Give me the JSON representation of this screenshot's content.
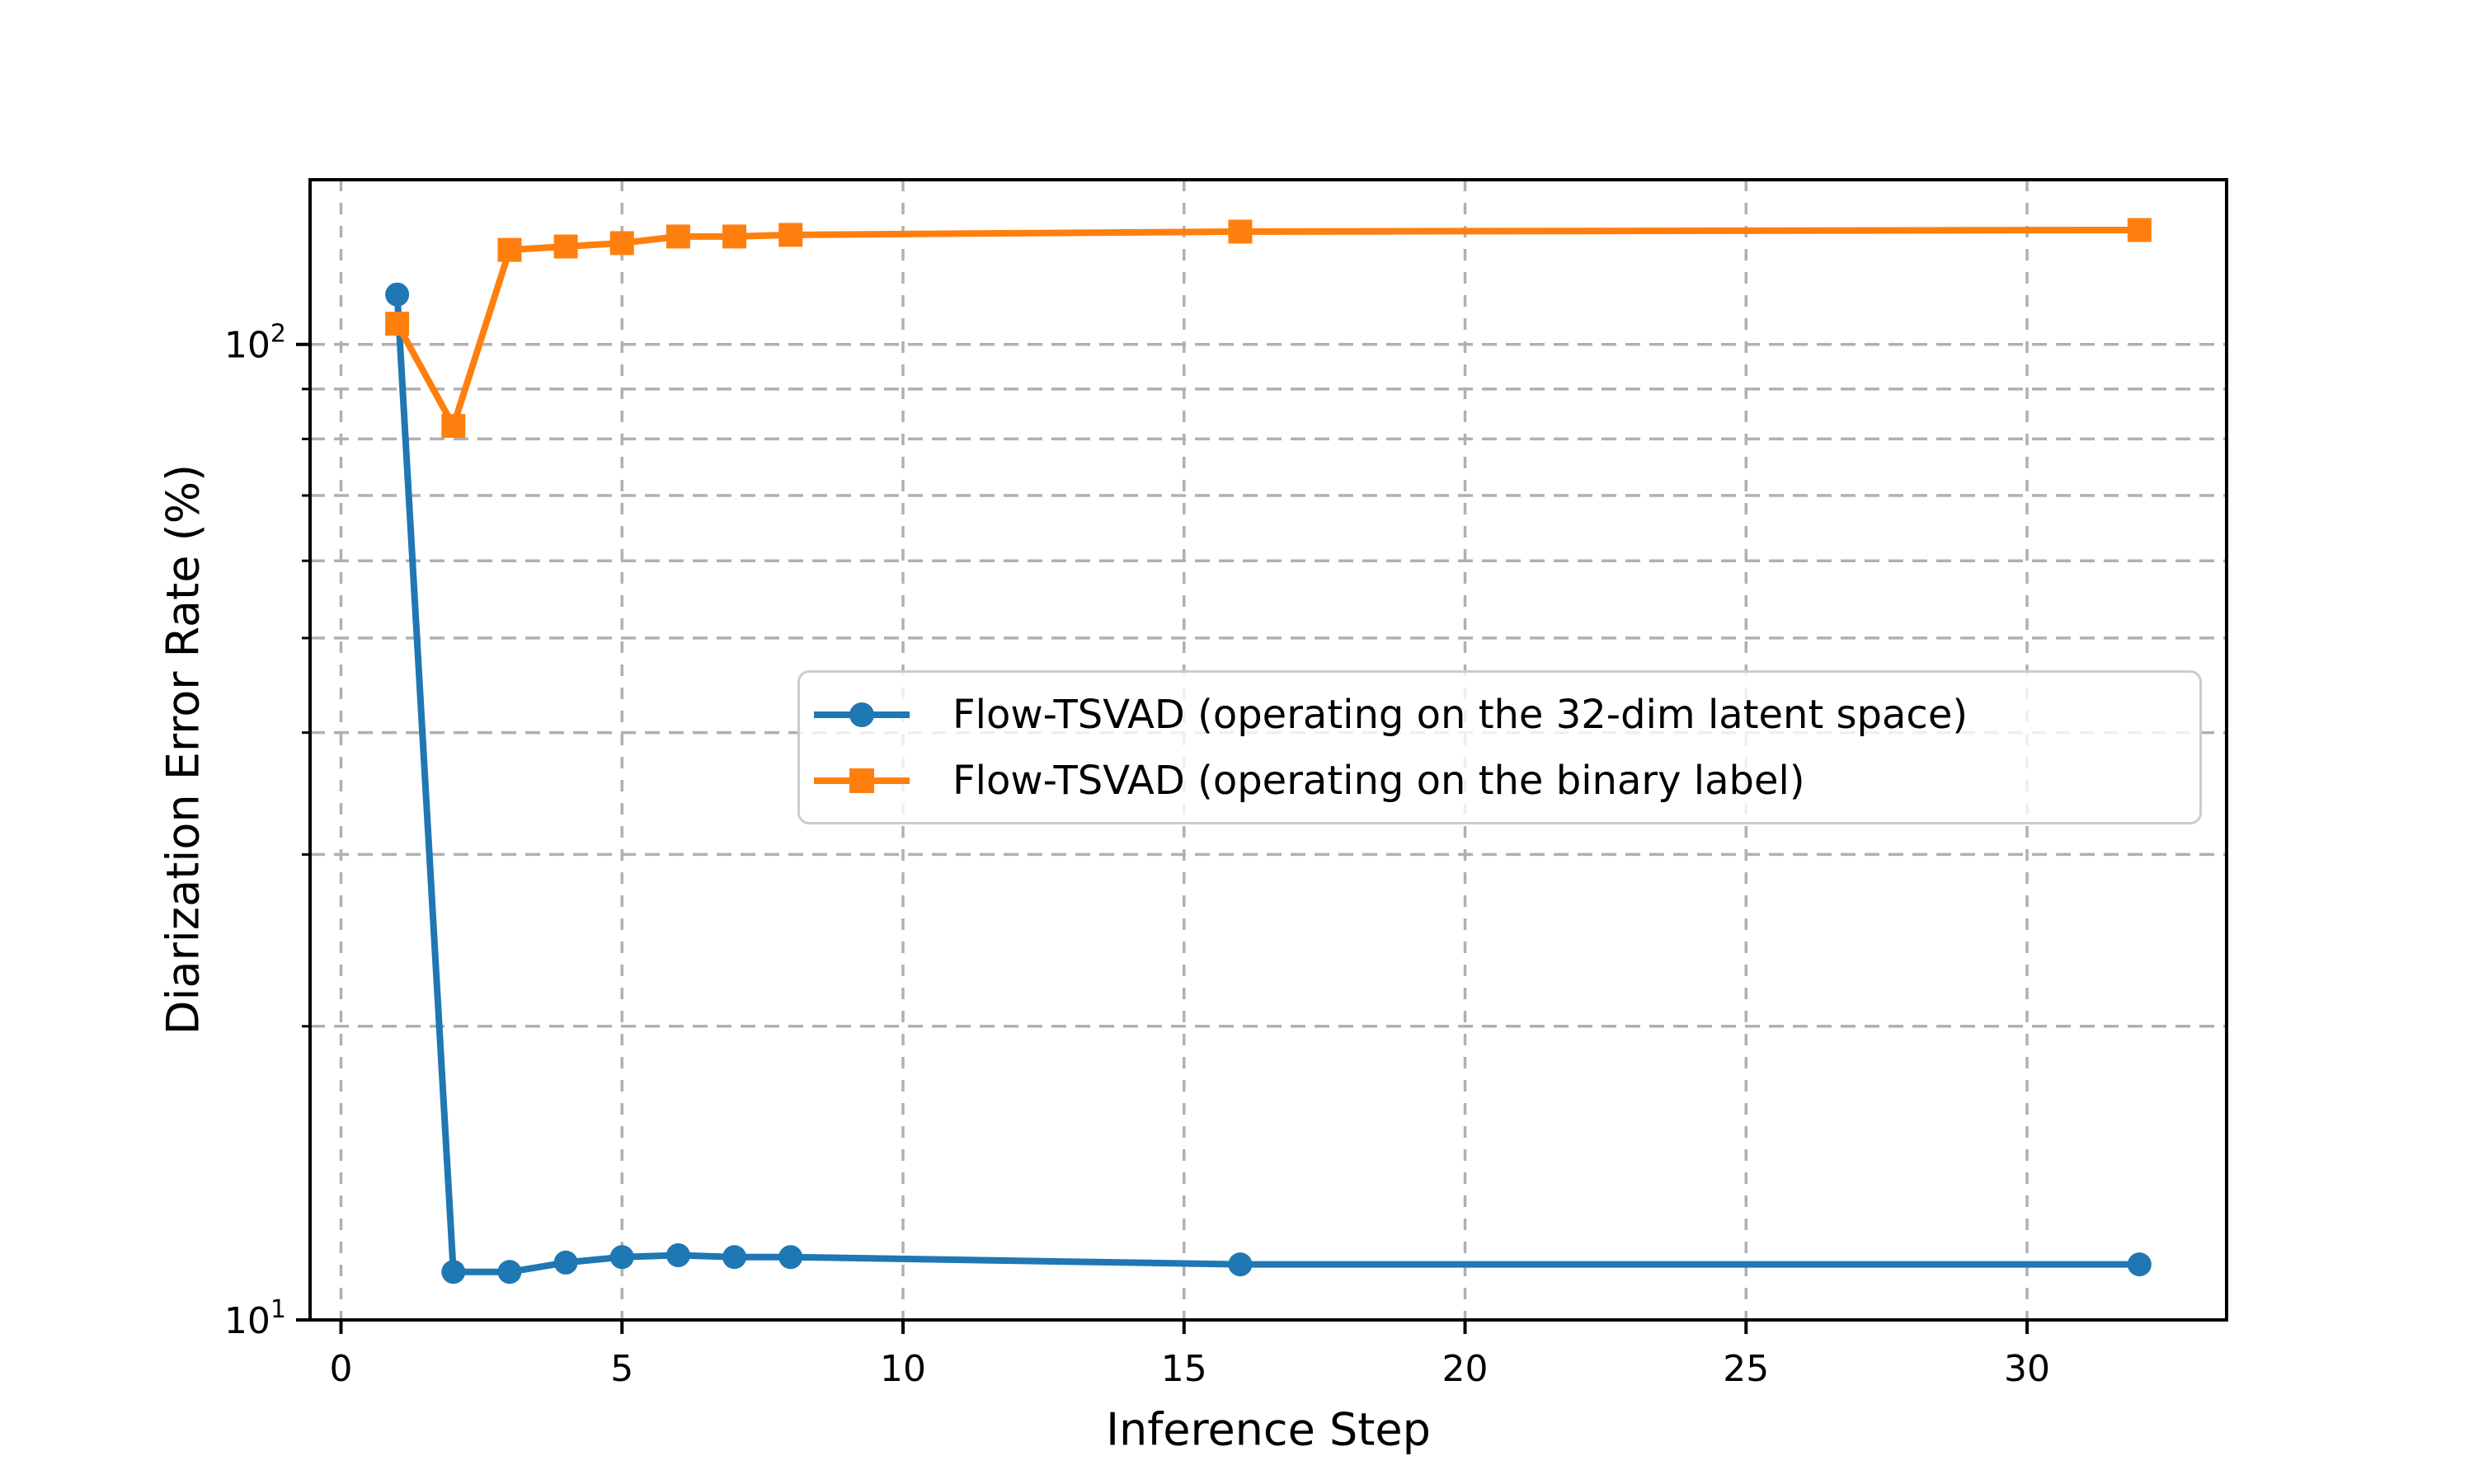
{
  "figure": {
    "background": "#ffffff"
  },
  "axes": {
    "xlabel": "Inference Step",
    "ylabel": "Diarization Error Rate (%)",
    "x_tick_labels": [
      "0",
      "5",
      "10",
      "15",
      "20",
      "25",
      "30"
    ],
    "y_major_tick_labels": [
      "10^1",
      "10^2"
    ]
  },
  "legend": {
    "entries": [
      {
        "label": "Flow-TSVAD (operating on the 32-dim latent space)",
        "color": "#1f77b4",
        "marker": "circle"
      },
      {
        "label": "Flow-TSVAD (operating on the binary label)",
        "color": "#ff7f0e",
        "marker": "square"
      }
    ]
  },
  "chart_data": {
    "type": "line",
    "title": "",
    "xlabel": "Inference Step",
    "ylabel": "Diarization Error Rate (%)",
    "xscale": "linear",
    "yscale": "log",
    "xlim": [
      -0.55,
      33.55
    ],
    "ylim": [
      10,
      147.5
    ],
    "x_ticks": [
      0,
      5,
      10,
      15,
      20,
      25,
      30
    ],
    "y_major_ticks": [
      10,
      100
    ],
    "y_minor_ticks": [
      20,
      30,
      40,
      50,
      60,
      70,
      80,
      90
    ],
    "grid": {
      "visible": true,
      "color": "#b0b0b0",
      "linestyle": "dashed",
      "x_positions": [
        0,
        5,
        10,
        15,
        20,
        25,
        30
      ],
      "y_positions": [
        10,
        20,
        30,
        40,
        50,
        60,
        70,
        80,
        90,
        100
      ]
    },
    "x": [
      1,
      2,
      3,
      4,
      5,
      6,
      7,
      8,
      16,
      32
    ],
    "series": [
      {
        "name": "Flow-TSVAD (operating on the 32-dim latent space)",
        "color": "#1f77b4",
        "marker": "circle",
        "values": [
          112.5,
          11.2,
          11.2,
          11.45,
          11.6,
          11.65,
          11.6,
          11.6,
          11.4,
          11.4
        ]
      },
      {
        "name": "Flow-TSVAD (operating on the binary label)",
        "color": "#ff7f0e",
        "marker": "square",
        "values": [
          105,
          82.5,
          125,
          126,
          127,
          129,
          129,
          129.5,
          130.5,
          131
        ]
      }
    ],
    "legend_position": "center-right inside axes"
  },
  "colors": {
    "series_blue": "#1f77b4",
    "series_orange": "#ff7f0e",
    "grid": "#b0b0b0",
    "spine": "#000000",
    "text": "#000000",
    "legend_border": "#cccccc"
  }
}
